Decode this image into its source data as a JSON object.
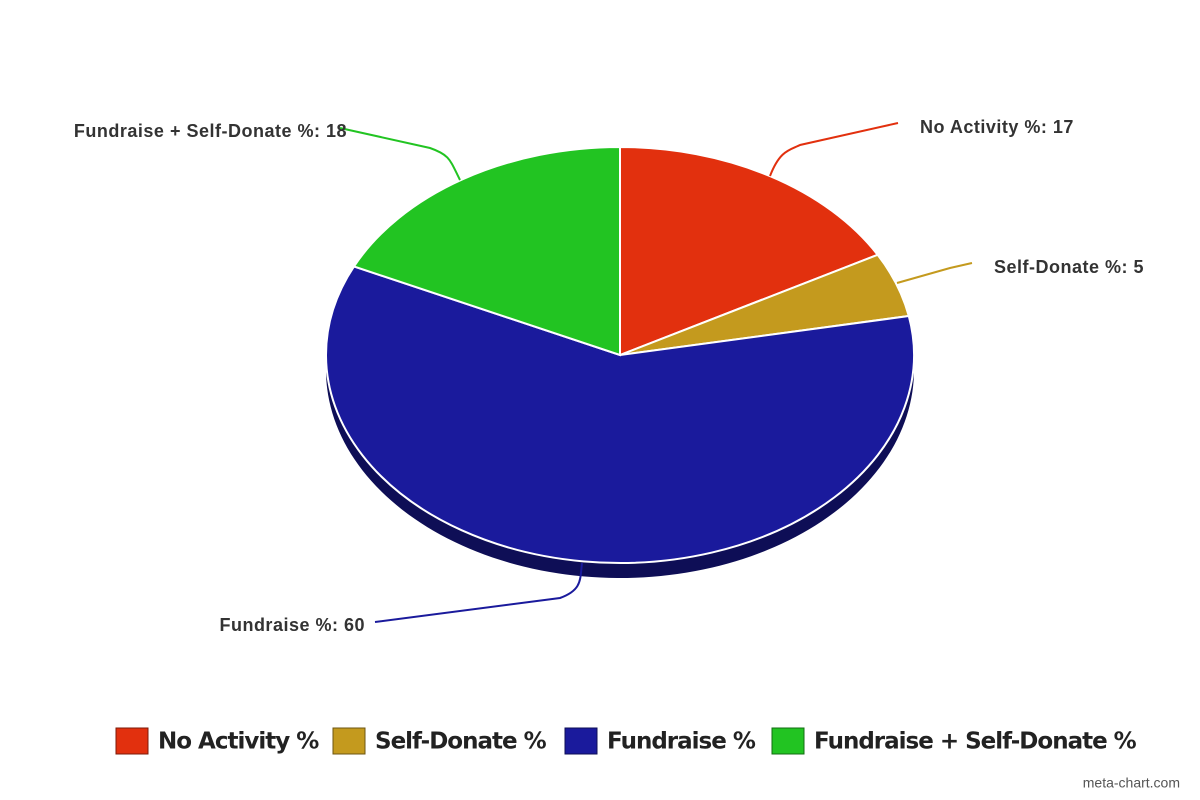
{
  "chart_data": {
    "type": "pie",
    "categories": [
      "No Activity %",
      "Self-Donate %",
      "Fundraise %",
      "Fundraise + Self-Donate %"
    ],
    "values": [
      17,
      5,
      60,
      18
    ],
    "value_labels": [
      "No Activity %: 17",
      "Self-Donate %: 5",
      "Fundraise %: 60",
      "Fundraise + Self-Donate %: 18"
    ],
    "colors": [
      "#e2300e",
      "#c49a1e",
      "#1a1a9c",
      "#22c422"
    ],
    "legend": "bottom",
    "watermark": "meta-chart.com"
  }
}
